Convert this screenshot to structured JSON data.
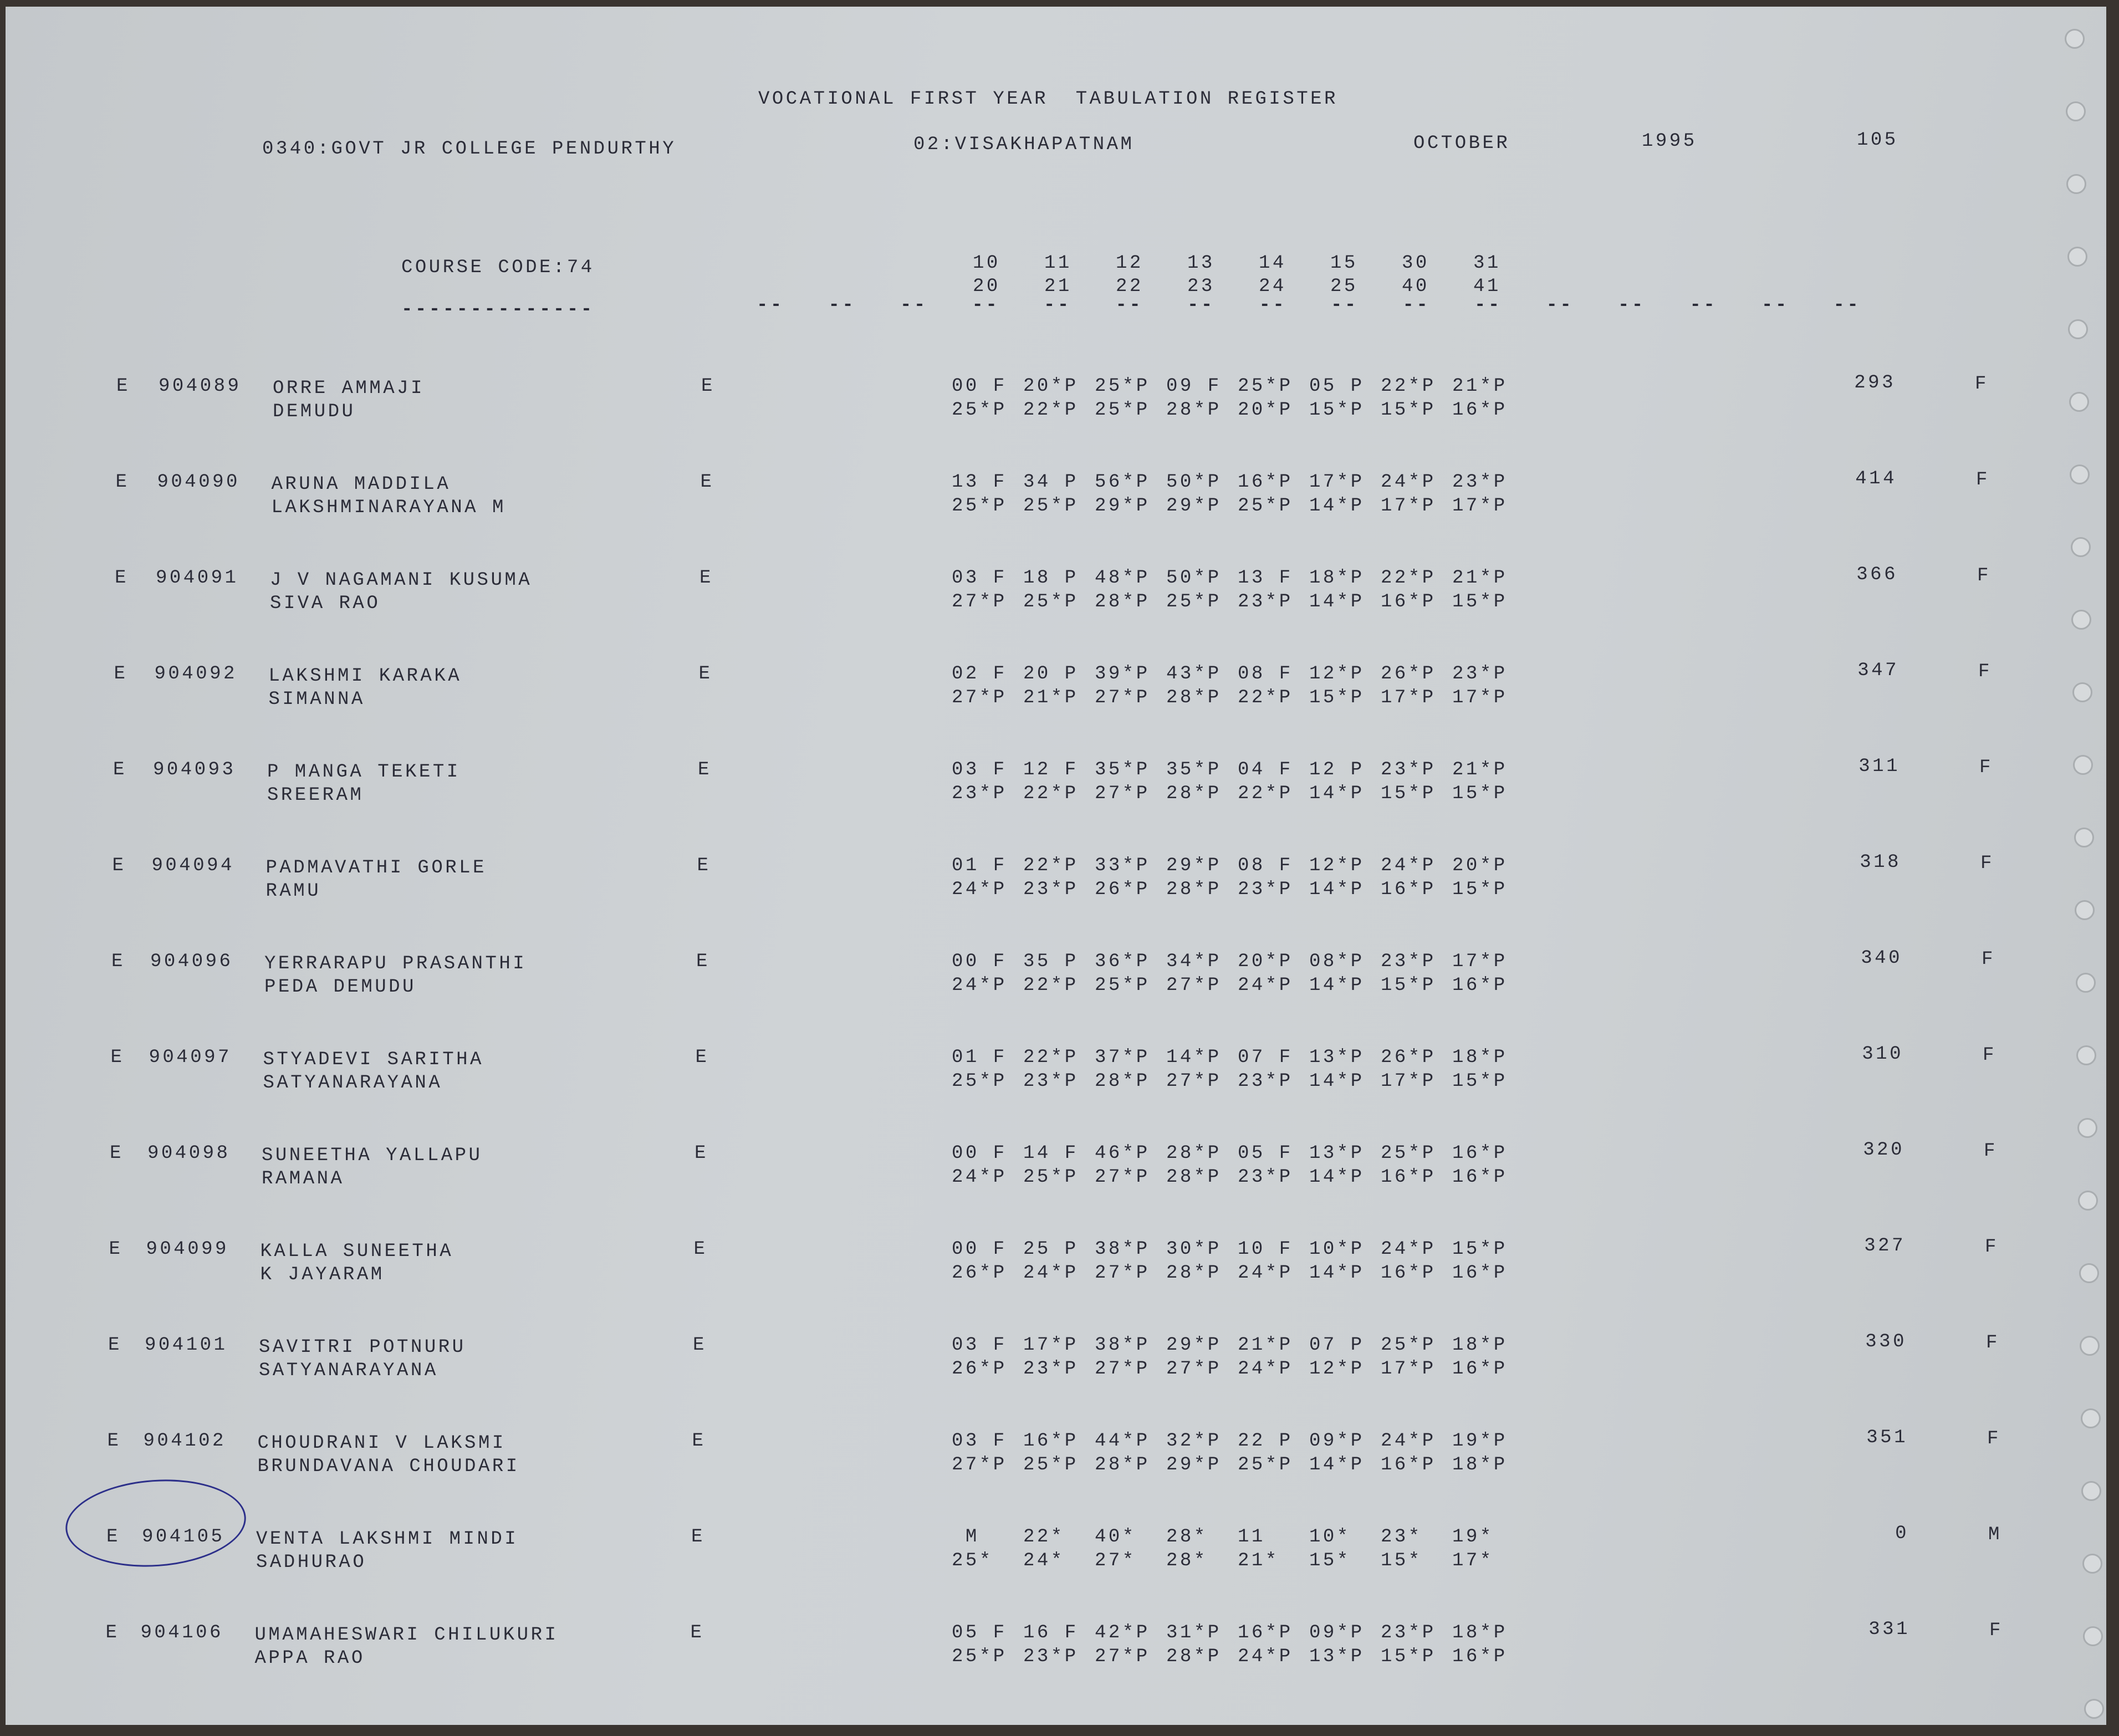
{
  "header": {
    "title": "VOCATIONAL FIRST YEAR  TABULATION REGISTER",
    "college": "0340:GOVT JR COLLEGE PENDURTHY",
    "district": "02:VISAKHAPATNAM",
    "month": "OCTOBER",
    "year": "1995",
    "page": "105",
    "course_code": "COURSE CODE:74",
    "course_underline": "--------------"
  },
  "subject_codes": {
    "top": [
      "10",
      "11",
      "12",
      "13",
      "14",
      "15",
      "30",
      "31"
    ],
    "bottom": [
      "20",
      "21",
      "22",
      "23",
      "24",
      "25",
      "40",
      "41"
    ]
  },
  "dash_marker": "--",
  "students": [
    {
      "type": "E",
      "roll": "904089",
      "name": "ORRE AMMAJI",
      "father": "DEMUDU",
      "medium": "E",
      "row1": [
        "00 F",
        "20*P",
        "25*P",
        "09 F",
        "25*P",
        "05 P",
        "22*P",
        "21*P"
      ],
      "row2": [
        "25*P",
        "22*P",
        "25*P",
        "28*P",
        "20*P",
        "15*P",
        "15*P",
        "16*P"
      ],
      "total": "293",
      "result": "F"
    },
    {
      "type": "E",
      "roll": "904090",
      "name": "ARUNA MADDILA",
      "father": "LAKSHMINARAYANA M",
      "medium": "E",
      "row1": [
        "13 F",
        "34 P",
        "56*P",
        "50*P",
        "16*P",
        "17*P",
        "24*P",
        "23*P"
      ],
      "row2": [
        "25*P",
        "25*P",
        "29*P",
        "29*P",
        "25*P",
        "14*P",
        "17*P",
        "17*P"
      ],
      "total": "414",
      "result": "F"
    },
    {
      "type": "E",
      "roll": "904091",
      "name": "J V NAGAMANI KUSUMA",
      "father": "SIVA RAO",
      "medium": "E",
      "row1": [
        "03 F",
        "18 P",
        "48*P",
        "50*P",
        "13 F",
        "18*P",
        "22*P",
        "21*P"
      ],
      "row2": [
        "27*P",
        "25*P",
        "28*P",
        "25*P",
        "23*P",
        "14*P",
        "16*P",
        "15*P"
      ],
      "total": "366",
      "result": "F"
    },
    {
      "type": "E",
      "roll": "904092",
      "name": "LAKSHMI KARAKA",
      "father": "SIMANNA",
      "medium": "E",
      "row1": [
        "02 F",
        "20 P",
        "39*P",
        "43*P",
        "08 F",
        "12*P",
        "26*P",
        "23*P"
      ],
      "row2": [
        "27*P",
        "21*P",
        "27*P",
        "28*P",
        "22*P",
        "15*P",
        "17*P",
        "17*P"
      ],
      "total": "347",
      "result": "F"
    },
    {
      "type": "E",
      "roll": "904093",
      "name": "P MANGA TEKETI",
      "father": "SREERAM",
      "medium": "E",
      "row1": [
        "03 F",
        "12 F",
        "35*P",
        "35*P",
        "04 F",
        "12 P",
        "23*P",
        "21*P"
      ],
      "row2": [
        "23*P",
        "22*P",
        "27*P",
        "28*P",
        "22*P",
        "14*P",
        "15*P",
        "15*P"
      ],
      "total": "311",
      "result": "F"
    },
    {
      "type": "E",
      "roll": "904094",
      "name": "PADMAVATHI GORLE",
      "father": "RAMU",
      "medium": "E",
      "row1": [
        "01 F",
        "22*P",
        "33*P",
        "29*P",
        "08 F",
        "12*P",
        "24*P",
        "20*P"
      ],
      "row2": [
        "24*P",
        "23*P",
        "26*P",
        "28*P",
        "23*P",
        "14*P",
        "16*P",
        "15*P"
      ],
      "total": "318",
      "result": "F"
    },
    {
      "type": "E",
      "roll": "904096",
      "name": "YERRARAPU PRASANTHI",
      "father": "PEDA DEMUDU",
      "medium": "E",
      "row1": [
        "00 F",
        "35 P",
        "36*P",
        "34*P",
        "20*P",
        "08*P",
        "23*P",
        "17*P"
      ],
      "row2": [
        "24*P",
        "22*P",
        "25*P",
        "27*P",
        "24*P",
        "14*P",
        "15*P",
        "16*P"
      ],
      "total": "340",
      "result": "F"
    },
    {
      "type": "E",
      "roll": "904097",
      "name": "STYADEVI SARITHA",
      "father": "SATYANARAYANA",
      "medium": "E",
      "row1": [
        "01 F",
        "22*P",
        "37*P",
        "14*P",
        "07 F",
        "13*P",
        "26*P",
        "18*P"
      ],
      "row2": [
        "25*P",
        "23*P",
        "28*P",
        "27*P",
        "23*P",
        "14*P",
        "17*P",
        "15*P"
      ],
      "total": "310",
      "result": "F"
    },
    {
      "type": "E",
      "roll": "904098",
      "name": "SUNEETHA YALLAPU",
      "father": "RAMANA",
      "medium": "E",
      "row1": [
        "00 F",
        "14 F",
        "46*P",
        "28*P",
        "05 F",
        "13*P",
        "25*P",
        "16*P"
      ],
      "row2": [
        "24*P",
        "25*P",
        "27*P",
        "28*P",
        "23*P",
        "14*P",
        "16*P",
        "16*P"
      ],
      "total": "320",
      "result": "F"
    },
    {
      "type": "E",
      "roll": "904099",
      "name": "KALLA SUNEETHA",
      "father": "K JAYARAM",
      "medium": "E",
      "row1": [
        "00 F",
        "25 P",
        "38*P",
        "30*P",
        "10 F",
        "10*P",
        "24*P",
        "15*P"
      ],
      "row2": [
        "26*P",
        "24*P",
        "27*P",
        "28*P",
        "24*P",
        "14*P",
        "16*P",
        "16*P"
      ],
      "total": "327",
      "result": "F"
    },
    {
      "type": "E",
      "roll": "904101",
      "name": "SAVITRI POTNURU",
      "father": "SATYANARAYANA",
      "medium": "E",
      "row1": [
        "03 F",
        "17*P",
        "38*P",
        "29*P",
        "21*P",
        "07 P",
        "25*P",
        "18*P"
      ],
      "row2": [
        "26*P",
        "23*P",
        "27*P",
        "27*P",
        "24*P",
        "12*P",
        "17*P",
        "16*P"
      ],
      "total": "330",
      "result": "F"
    },
    {
      "type": "E",
      "roll": "904102",
      "name": "CHOUDRANI V LAKSMI",
      "father": "BRUNDAVANA CHOUDARI",
      "medium": "E",
      "row1": [
        "03 F",
        "16*P",
        "44*P",
        "32*P",
        "22 P",
        "09*P",
        "24*P",
        "19*P"
      ],
      "row2": [
        "27*P",
        "25*P",
        "28*P",
        "29*P",
        "25*P",
        "14*P",
        "16*P",
        "18*P"
      ],
      "total": "351",
      "result": "F"
    },
    {
      "type": "E",
      "roll": "904105",
      "name": "VENTA LAKSHMI MINDI",
      "father": "SADHURAO",
      "medium": "E",
      "row1": [
        " M",
        "22*",
        "40*",
        "28*",
        "11",
        "10*",
        "23*",
        "19*"
      ],
      "row2": [
        "25*",
        "24*",
        "27*",
        "28*",
        "21*",
        "15*",
        "15*",
        "17*"
      ],
      "total": "0",
      "result": "M"
    },
    {
      "type": "E",
      "roll": "904106",
      "name": "UMAMAHESWARI CHILUKURI",
      "father": "APPA RAO",
      "medium": "E",
      "row1": [
        "05 F",
        "16 F",
        "42*P",
        "31*P",
        "16*P",
        "09*P",
        "23*P",
        "18*P"
      ],
      "row2": [
        "25*P",
        "23*P",
        "27*P",
        "28*P",
        "24*P",
        "13*P",
        "15*P",
        "16*P"
      ],
      "total": "331",
      "result": "F"
    }
  ]
}
